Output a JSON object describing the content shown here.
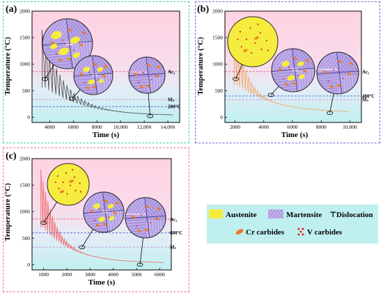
{
  "figure": {
    "legend": {
      "items": [
        {
          "label": "Austenite",
          "icon": "austenite-swatch",
          "color": "#f5ec3d"
        },
        {
          "label": "Martensite",
          "icon": "martensite-swatch",
          "color": "#b7a3e6"
        },
        {
          "label": "Dislocation",
          "icon": "dislocation-symbol",
          "glyph": "⊤"
        },
        {
          "label": "Cr carbides",
          "icon": "cr-carbide-symbol",
          "color": "#f07a2a"
        },
        {
          "label": "V carbides",
          "icon": "v-carbide-symbol",
          "color": "#e02020"
        }
      ]
    }
  },
  "chart_data": [
    {
      "type": "line",
      "panel_label": "(a)",
      "xlabel": "Time (s)",
      "ylabel": "Temperature (°C)",
      "xlim": [
        2500,
        15000
      ],
      "ylim": [
        -100,
        2000
      ],
      "xticks": [
        "4000",
        "6000",
        "8000",
        "10,000",
        "12,000",
        "14,000"
      ],
      "yticks": [
        "0",
        "500",
        "1000",
        "1500",
        "2000"
      ],
      "xtick_values": [
        4000,
        6000,
        8000,
        10000,
        12000,
        14000
      ],
      "ytick_values": [
        0,
        500,
        1000,
        1500,
        2000
      ],
      "line_color": "#444444",
      "reference_lines": [
        {
          "label": "Ac₁",
          "value": 860,
          "color": "#ee5577"
        },
        {
          "label": "Mₛ",
          "value": 330,
          "color": "#c699dd"
        },
        {
          "label": "200°C",
          "value": 200,
          "color": "#4466dd"
        }
      ],
      "thermal_cycle": {
        "start": 3350,
        "end": 14300,
        "peak_interval": 300,
        "first_peak": 1650,
        "peak_decay_s": 1400,
        "valley_start": 560,
        "valley_end": 25,
        "valley_decay_s": 3200
      },
      "microstructure_insets": [
        {
          "time": 3600,
          "temperature": 720,
          "content": "austenite grains in martensite with V carbides"
        },
        {
          "time": 5900,
          "temperature": 350,
          "content": "tempered martensite with austenite and carbides"
        },
        {
          "time": 12500,
          "temperature": 20,
          "content": "martensite with carbides"
        }
      ]
    },
    {
      "type": "line",
      "panel_label": "(b)",
      "xlabel": "Time (s)",
      "ylabel": "Temperature (°C)",
      "xlim": [
        1300,
        10800
      ],
      "ylim": [
        -100,
        2000
      ],
      "xticks": [
        "2000",
        "4000",
        "6000",
        "8000",
        "10,000"
      ],
      "yticks": [
        "0",
        "500",
        "1000",
        "1500",
        "2000"
      ],
      "xtick_values": [
        2000,
        4000,
        6000,
        8000,
        10000
      ],
      "ytick_values": [
        0,
        500,
        1000,
        1500,
        2000
      ],
      "line_color": "#f5a25a",
      "reference_lines": [
        {
          "label": "Ac₁",
          "value": 860,
          "color": "#ee5577"
        },
        {
          "label": "400°C",
          "value": 400,
          "color": "#4466dd"
        },
        {
          "label": "Mₛ",
          "value": 330,
          "color": "#c699dd"
        }
      ],
      "thermal_cycle": {
        "start": 1950,
        "end": 9800,
        "peak_interval": 200,
        "first_peak": 1800,
        "peak_decay_s": 700,
        "valley_start": 600,
        "valley_end": 80,
        "valley_decay_s": 2600
      },
      "microstructure_insets": [
        {
          "time": 2050,
          "temperature": 720,
          "content": "austenite with V carbides"
        },
        {
          "time": 4500,
          "temperature": 420,
          "content": "martensite with austenite islands and carbides"
        },
        {
          "time": 8600,
          "temperature": 80,
          "content": "martensite with carbides"
        }
      ]
    },
    {
      "type": "line",
      "panel_label": "(c)",
      "xlabel": "Time (s)",
      "ylabel": "Temperature (°C)",
      "xlim": [
        500,
        6500
      ],
      "ylim": [
        -100,
        2000
      ],
      "xticks": [
        "1000",
        "2000",
        "3000",
        "4000",
        "5000",
        "6000"
      ],
      "yticks": [
        "0",
        "500",
        "1000",
        "1500",
        "2000"
      ],
      "xtick_values": [
        1000,
        2000,
        3000,
        4000,
        5000,
        6000
      ],
      "ytick_values": [
        0,
        500,
        1000,
        1500,
        2000
      ],
      "line_color": "#f06060",
      "reference_lines": [
        {
          "label": "Ac₁",
          "value": 860,
          "color": "#ee5577"
        },
        {
          "label": "600°C",
          "value": 600,
          "color": "#4466dd"
        },
        {
          "label": "Mₛ",
          "value": 330,
          "color": "#c699dd"
        }
      ],
      "thermal_cycle": {
        "start": 880,
        "end": 6100,
        "peak_interval": 100,
        "first_peak": 1800,
        "peak_decay_s": 450,
        "valley_start": 700,
        "valley_end": 30,
        "valley_decay_s": 1300
      },
      "microstructure_insets": [
        {
          "time": 1000,
          "temperature": 790,
          "content": "austenite with V carbides"
        },
        {
          "time": 2650,
          "temperature": 330,
          "content": "martensite with austenite islands"
        },
        {
          "time": 5150,
          "temperature": 0,
          "content": "martensite"
        }
      ]
    }
  ]
}
